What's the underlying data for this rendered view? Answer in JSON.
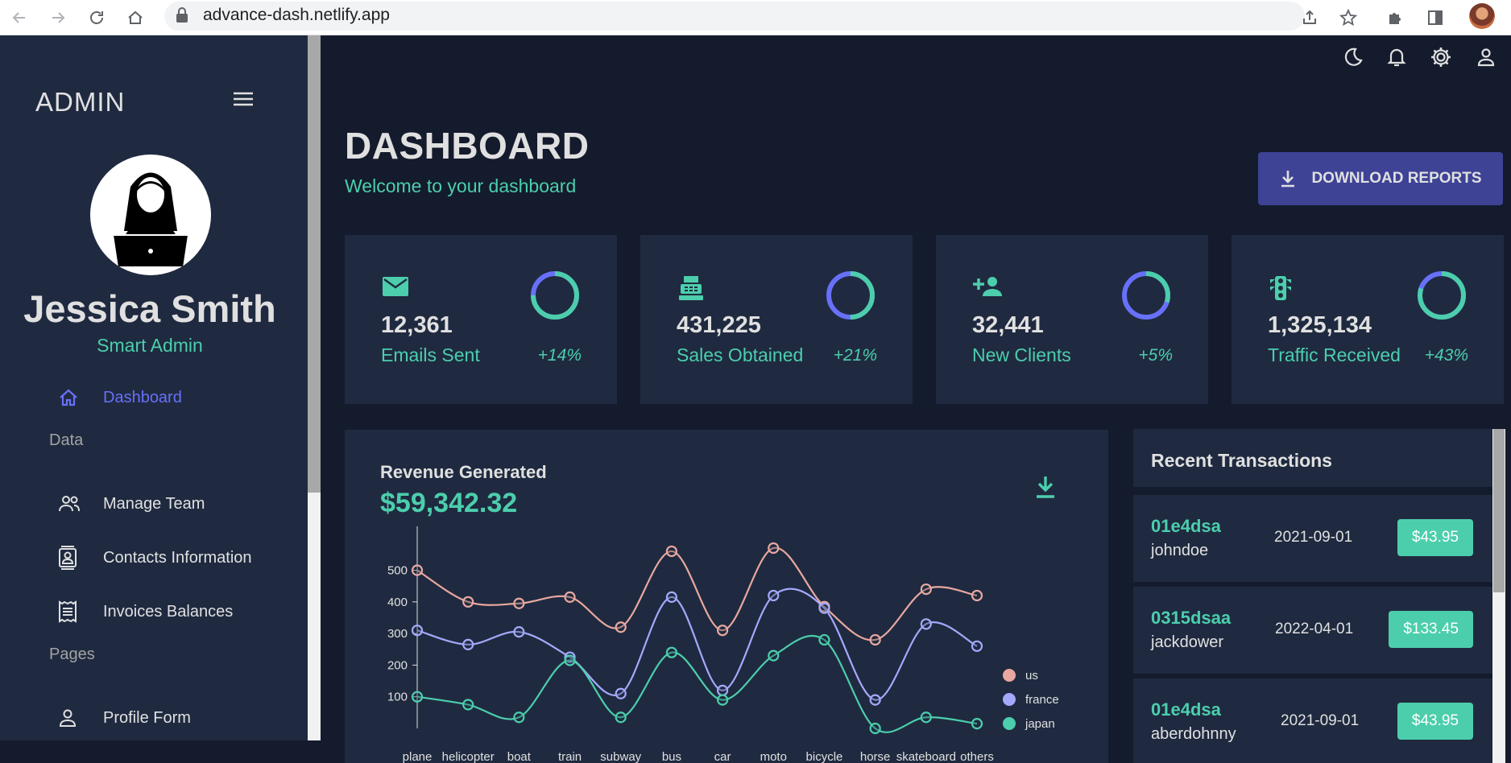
{
  "browser": {
    "url": "advance-dash.netlify.app"
  },
  "sidebar": {
    "brand": "ADMIN",
    "user": {
      "name": "Jessica Smith",
      "role": "Smart Admin"
    },
    "active_item": {
      "label": "Dashboard"
    },
    "sections": [
      {
        "title": "Data",
        "items": [
          {
            "label": "Manage Team"
          },
          {
            "label": "Contacts Information"
          },
          {
            "label": "Invoices Balances"
          }
        ]
      },
      {
        "title": "Pages",
        "items": [
          {
            "label": "Profile Form"
          }
        ]
      }
    ]
  },
  "header": {
    "title": "DASHBOARD",
    "subtitle": "Welcome to your dashboard",
    "download_button": "DOWNLOAD REPORTS"
  },
  "stats": [
    {
      "icon": "email-icon",
      "value": "12,361",
      "label": "Emails Sent",
      "change": "+14%",
      "progress": 0.75
    },
    {
      "icon": "point-of-sale-icon",
      "value": "431,225",
      "label": "Sales Obtained",
      "change": "+21%",
      "progress": 0.5
    },
    {
      "icon": "person-add-icon",
      "value": "32,441",
      "label": "New Clients",
      "change": "+5%",
      "progress": 0.3
    },
    {
      "icon": "traffic-icon",
      "value": "1,325,134",
      "label": "Traffic Received",
      "change": "+43%",
      "progress": 0.8
    }
  ],
  "revenue": {
    "title": "Revenue Generated",
    "amount": "$59,342.32"
  },
  "chart_data": {
    "type": "line",
    "x": [
      "plane",
      "helicopter",
      "boat",
      "train",
      "subway",
      "bus",
      "car",
      "moto",
      "bicycle",
      "horse",
      "skateboard",
      "others"
    ],
    "yticks": [
      100,
      200,
      300,
      400,
      500
    ],
    "ylim": [
      0,
      600
    ],
    "series": [
      {
        "name": "us",
        "color": "#e8a8a0",
        "values": [
          500,
          400,
          395,
          415,
          320,
          560,
          310,
          570,
          385,
          280,
          440,
          420
        ]
      },
      {
        "name": "france",
        "color": "#a4a9fc",
        "values": [
          310,
          265,
          305,
          225,
          110,
          415,
          120,
          420,
          380,
          90,
          330,
          260
        ]
      },
      {
        "name": "japan",
        "color": "#4cceac",
        "values": [
          100,
          75,
          35,
          215,
          35,
          240,
          90,
          230,
          280,
          0,
          35,
          15
        ]
      }
    ],
    "legend": "right"
  },
  "transactions": {
    "title": "Recent Transactions",
    "items": [
      {
        "txId": "01e4dsa",
        "user": "johndoe",
        "date": "2021-09-01",
        "cost": "$43.95"
      },
      {
        "txId": "0315dsaa",
        "user": "jackdower",
        "date": "2022-04-01",
        "cost": "$133.45"
      },
      {
        "txId": "01e4dsa",
        "user": "aberdohnny",
        "date": "2021-09-01",
        "cost": "$43.95"
      }
    ]
  }
}
